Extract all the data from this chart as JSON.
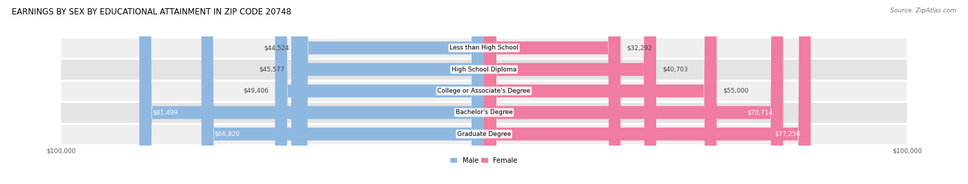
{
  "title": "EARNINGS BY SEX BY EDUCATIONAL ATTAINMENT IN ZIP CODE 20748",
  "source": "Source: ZipAtlas.com",
  "categories": [
    "Less than High School",
    "High School Diploma",
    "College or Associate's Degree",
    "Bachelor's Degree",
    "Graduate Degree"
  ],
  "male_values": [
    44524,
    45577,
    49406,
    81499,
    66820
  ],
  "female_values": [
    32292,
    40703,
    55000,
    70714,
    77258
  ],
  "male_color": "#8fb8e0",
  "female_color": "#f07ca0",
  "male_label_color_dark": "#444444",
  "male_label_color_light": "#ffffff",
  "female_label_color_dark": "#444444",
  "female_label_color_light": "#ffffff",
  "row_bg_colors": [
    "#efefef",
    "#e4e4e4",
    "#efefef",
    "#e4e4e4",
    "#efefef"
  ],
  "max_value": 100000,
  "title_fontsize": 8.5,
  "source_fontsize": 6.5,
  "label_fontsize": 6.5,
  "category_fontsize": 6.5,
  "axis_fontsize": 6.5,
  "legend_fontsize": 7,
  "bar_height": 0.6,
  "male_inside_threshold": 60000,
  "female_inside_threshold": 65000
}
